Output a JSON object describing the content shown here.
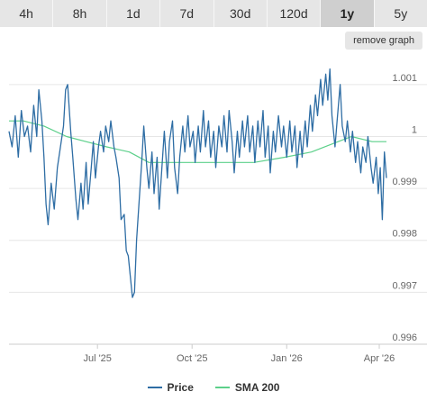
{
  "tabs": [
    {
      "label": "4h",
      "active": false
    },
    {
      "label": "8h",
      "active": false
    },
    {
      "label": "1d",
      "active": false
    },
    {
      "label": "7d",
      "active": false
    },
    {
      "label": "30d",
      "active": false
    },
    {
      "label": "120d",
      "active": false
    },
    {
      "label": "1y",
      "active": true
    },
    {
      "label": "5y",
      "active": false
    }
  ],
  "remove_graph_label": "remove graph",
  "colors": {
    "price": "#2e6da4",
    "sma": "#5cd08a",
    "grid": "#e6e6e6",
    "text": "#666666"
  },
  "legend": {
    "price": "Price",
    "sma": "SMA 200"
  },
  "chart_data": {
    "type": "line",
    "x_range": [
      "2025-04-06",
      "2026-04-08"
    ],
    "ylim": [
      0.996,
      1.0015
    ],
    "y_ticks": [
      0.996,
      0.997,
      0.998,
      0.999,
      1,
      1.001
    ],
    "y_tick_labels": [
      "0.996",
      "0.997",
      "0.998",
      "0.999",
      "1",
      "1.001"
    ],
    "x_ticks": [
      "2025-07-01",
      "2025-10-01",
      "2026-01-01",
      "2026-04-01"
    ],
    "x_tick_labels": [
      "Jul '25",
      "Oct '25",
      "Jan '26",
      "Apr '26"
    ],
    "legend_position": "bottom",
    "grid": true,
    "series": [
      {
        "name": "Price",
        "points": [
          [
            "2025-04-06",
            1.0001
          ],
          [
            "2025-04-09",
            0.9998
          ],
          [
            "2025-04-12",
            1.0004
          ],
          [
            "2025-04-15",
            0.9996
          ],
          [
            "2025-04-18",
            1.0005
          ],
          [
            "2025-04-21",
            1.0
          ],
          [
            "2025-04-24",
            1.0002
          ],
          [
            "2025-04-27",
            0.9997
          ],
          [
            "2025-04-30",
            1.0006
          ],
          [
            "2025-05-03",
            1.0
          ],
          [
            "2025-05-05",
            1.0009
          ],
          [
            "2025-05-08",
            1.0003
          ],
          [
            "2025-05-10",
            0.9996
          ],
          [
            "2025-05-12",
            0.9987
          ],
          [
            "2025-05-14",
            0.9983
          ],
          [
            "2025-05-17",
            0.9991
          ],
          [
            "2025-05-20",
            0.9986
          ],
          [
            "2025-05-23",
            0.9994
          ],
          [
            "2025-05-26",
            0.9998
          ],
          [
            "2025-05-29",
            1.0002
          ],
          [
            "2025-05-31",
            1.0009
          ],
          [
            "2025-06-02",
            1.001
          ],
          [
            "2025-06-05",
            1.0001
          ],
          [
            "2025-06-07",
            0.9996
          ],
          [
            "2025-06-10",
            0.9988
          ],
          [
            "2025-06-12",
            0.9984
          ],
          [
            "2025-06-15",
            0.9991
          ],
          [
            "2025-06-17",
            0.9986
          ],
          [
            "2025-06-20",
            0.9995
          ],
          [
            "2025-06-22",
            0.9987
          ],
          [
            "2025-06-25",
            0.9994
          ],
          [
            "2025-06-27",
            0.9999
          ],
          [
            "2025-06-29",
            0.9992
          ],
          [
            "2025-07-02",
            0.9998
          ],
          [
            "2025-07-04",
            1.0001
          ],
          [
            "2025-07-07",
            0.9997
          ],
          [
            "2025-07-09",
            1.0002
          ],
          [
            "2025-07-12",
            0.9999
          ],
          [
            "2025-07-14",
            1.0003
          ],
          [
            "2025-07-17",
            0.9998
          ],
          [
            "2025-07-19",
            0.9996
          ],
          [
            "2025-07-22",
            0.9992
          ],
          [
            "2025-07-24",
            0.9984
          ],
          [
            "2025-07-27",
            0.9985
          ],
          [
            "2025-07-29",
            0.9978
          ],
          [
            "2025-07-31",
            0.9977
          ],
          [
            "2025-08-02",
            0.9973
          ],
          [
            "2025-08-04",
            0.9969
          ],
          [
            "2025-08-06",
            0.997
          ],
          [
            "2025-08-08",
            0.998
          ],
          [
            "2025-08-11",
            0.9989
          ],
          [
            "2025-08-13",
            0.9995
          ],
          [
            "2025-08-15",
            1.0002
          ],
          [
            "2025-08-18",
            0.9994
          ],
          [
            "2025-08-20",
            0.999
          ],
          [
            "2025-08-23",
            0.9997
          ],
          [
            "2025-08-25",
            0.9989
          ],
          [
            "2025-08-28",
            0.9996
          ],
          [
            "2025-08-30",
            0.9986
          ],
          [
            "2025-09-02",
            0.9995
          ],
          [
            "2025-09-04",
            1.0001
          ],
          [
            "2025-09-07",
            0.9992
          ],
          [
            "2025-09-09",
            0.9999
          ],
          [
            "2025-09-12",
            1.0003
          ],
          [
            "2025-09-14",
            0.9994
          ],
          [
            "2025-09-17",
            0.9989
          ],
          [
            "2025-09-19",
            0.9996
          ],
          [
            "2025-09-22",
            1.0002
          ],
          [
            "2025-09-24",
            0.9997
          ],
          [
            "2025-09-27",
            1.0004
          ],
          [
            "2025-09-29",
            0.9998
          ],
          [
            "2025-10-02",
            1.0001
          ],
          [
            "2025-10-04",
            0.9995
          ],
          [
            "2025-10-07",
            1.0002
          ],
          [
            "2025-10-09",
            0.9997
          ],
          [
            "2025-10-12",
            1.0005
          ],
          [
            "2025-10-14",
            0.9998
          ],
          [
            "2025-10-17",
            1.0003
          ],
          [
            "2025-10-19",
            0.9996
          ],
          [
            "2025-10-22",
            1.0001
          ],
          [
            "2025-10-24",
            0.9994
          ],
          [
            "2025-10-27",
            1.0002
          ],
          [
            "2025-10-30",
            0.9998
          ],
          [
            "2025-11-01",
            1.0004
          ],
          [
            "2025-11-04",
            0.9997
          ],
          [
            "2025-11-06",
            1.0005
          ],
          [
            "2025-11-09",
            0.9999
          ],
          [
            "2025-11-11",
            0.9993
          ],
          [
            "2025-11-14",
            1.0001
          ],
          [
            "2025-11-16",
            0.9996
          ],
          [
            "2025-11-19",
            1.0003
          ],
          [
            "2025-11-21",
            0.9998
          ],
          [
            "2025-11-24",
            1.0004
          ],
          [
            "2025-11-26",
            0.9997
          ],
          [
            "2025-11-29",
            1.0002
          ],
          [
            "2025-12-01",
            0.9995
          ],
          [
            "2025-12-04",
            1.0003
          ],
          [
            "2025-12-06",
            0.9998
          ],
          [
            "2025-12-09",
            1.0005
          ],
          [
            "2025-12-11",
            0.9996
          ],
          [
            "2025-12-14",
            1.0002
          ],
          [
            "2025-12-16",
            0.9993
          ],
          [
            "2025-12-19",
            1.0001
          ],
          [
            "2025-12-21",
            0.9997
          ],
          [
            "2025-12-24",
            1.0004
          ],
          [
            "2025-12-27",
            0.9998
          ],
          [
            "2025-12-29",
            1.0002
          ],
          [
            "2026-01-01",
            0.9996
          ],
          [
            "2026-01-04",
            1.0003
          ],
          [
            "2026-01-06",
            0.9997
          ],
          [
            "2026-01-09",
            1.0002
          ],
          [
            "2026-01-11",
            0.9994
          ],
          [
            "2026-01-14",
            1.0001
          ],
          [
            "2026-01-16",
            0.9996
          ],
          [
            "2026-01-19",
            1.0003
          ],
          [
            "2026-01-21",
            0.9998
          ],
          [
            "2026-01-24",
            1.0006
          ],
          [
            "2026-01-26",
            1.0001
          ],
          [
            "2026-01-29",
            1.0008
          ],
          [
            "2026-01-31",
            1.0004
          ],
          [
            "2026-02-03",
            1.0011
          ],
          [
            "2026-02-05",
            1.0006
          ],
          [
            "2026-02-08",
            1.0012
          ],
          [
            "2026-02-10",
            1.0007
          ],
          [
            "2026-02-12",
            1.0013
          ],
          [
            "2026-02-14",
            1.0004
          ],
          [
            "2026-02-17",
            0.9998
          ],
          [
            "2026-02-19",
            1.0003
          ],
          [
            "2026-02-22",
            1.001
          ],
          [
            "2026-02-24",
            1.0002
          ],
          [
            "2026-02-27",
            0.9999
          ],
          [
            "2026-03-01",
            1.0003
          ],
          [
            "2026-03-04",
            0.9997
          ],
          [
            "2026-03-06",
            1.0001
          ],
          [
            "2026-03-09",
            0.9995
          ],
          [
            "2026-03-11",
            0.9999
          ],
          [
            "2026-03-14",
            0.9993
          ],
          [
            "2026-03-16",
            0.9998
          ],
          [
            "2026-03-19",
            0.9995
          ],
          [
            "2026-03-21",
            1.0
          ],
          [
            "2026-03-24",
            0.9994
          ],
          [
            "2026-03-26",
            0.9991
          ],
          [
            "2026-03-29",
            0.9996
          ],
          [
            "2026-03-31",
            0.9989
          ],
          [
            "2026-04-02",
            0.9994
          ],
          [
            "2026-04-04",
            0.9984
          ],
          [
            "2026-04-06",
            0.9997
          ],
          [
            "2026-04-08",
            0.9992
          ]
        ]
      },
      {
        "name": "SMA 200",
        "points": [
          [
            "2025-04-06",
            1.0003
          ],
          [
            "2025-04-20",
            1.0003
          ],
          [
            "2025-05-10",
            1.0002
          ],
          [
            "2025-06-01",
            1.0
          ],
          [
            "2025-06-20",
            0.9999
          ],
          [
            "2025-07-10",
            0.9998
          ],
          [
            "2025-08-01",
            0.9997
          ],
          [
            "2025-08-20",
            0.9995
          ],
          [
            "2025-09-10",
            0.9995
          ],
          [
            "2025-10-01",
            0.9995
          ],
          [
            "2025-10-30",
            0.9995
          ],
          [
            "2025-11-30",
            0.9995
          ],
          [
            "2025-12-30",
            0.9996
          ],
          [
            "2026-01-25",
            0.9997
          ],
          [
            "2026-02-20",
            0.9999
          ],
          [
            "2026-03-05",
            1.0
          ],
          [
            "2026-03-25",
            0.9999
          ],
          [
            "2026-04-08",
            0.9999
          ]
        ]
      }
    ]
  }
}
